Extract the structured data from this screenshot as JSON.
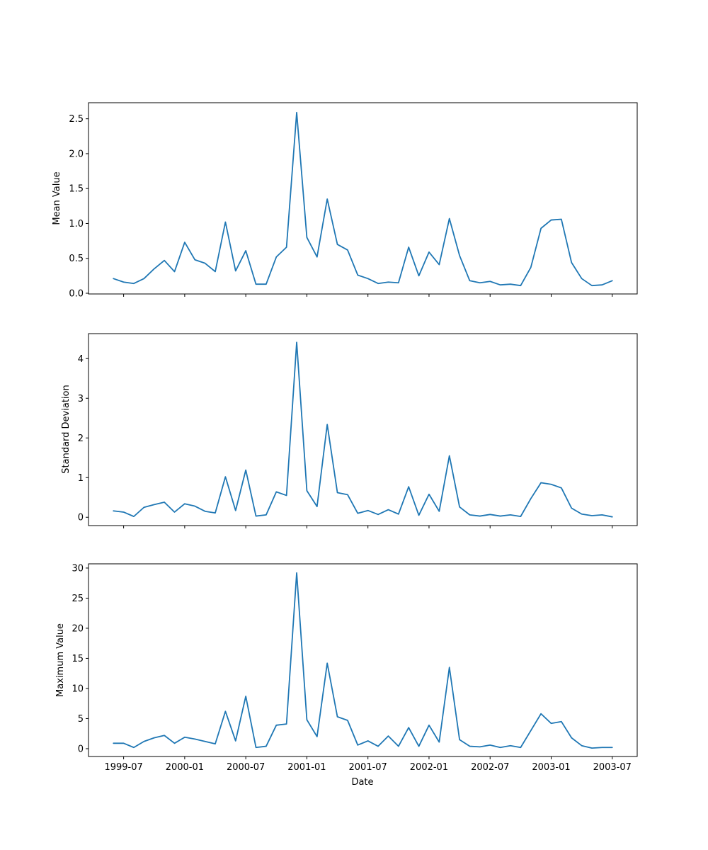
{
  "chart_data": {
    "type": "line",
    "colors": {
      "line": "#1f77b4"
    },
    "x": [
      "1999-06",
      "1999-07",
      "1999-08",
      "1999-09",
      "1999-10",
      "1999-11",
      "1999-12",
      "2000-01",
      "2000-02",
      "2000-03",
      "2000-04",
      "2000-05",
      "2000-06",
      "2000-07",
      "2000-08",
      "2000-09",
      "2000-10",
      "2000-11",
      "2000-12",
      "2001-01",
      "2001-02",
      "2001-03",
      "2001-04",
      "2001-05",
      "2001-06",
      "2001-07",
      "2001-08",
      "2001-09",
      "2001-10",
      "2001-11",
      "2001-12",
      "2002-01",
      "2002-02",
      "2002-03",
      "2002-04",
      "2002-05",
      "2002-06",
      "2002-07",
      "2002-08",
      "2002-09",
      "2002-10",
      "2002-11",
      "2002-12",
      "2003-01",
      "2003-02",
      "2003-03",
      "2003-04",
      "2003-05",
      "2003-06",
      "2003-07"
    ],
    "xticks": [
      "1999-07",
      "2000-01",
      "2000-07",
      "2001-01",
      "2001-07",
      "2002-01",
      "2002-07",
      "2003-01",
      "2003-07"
    ],
    "xlabel": "Date",
    "panels": [
      {
        "ylabel": "Mean Value",
        "ylim": [
          -0.01,
          2.73
        ],
        "yticks": [
          0.0,
          0.5,
          1.0,
          1.5,
          2.0,
          2.5
        ],
        "ytick_labels": [
          "0.0",
          "0.5",
          "1.0",
          "1.5",
          "2.0",
          "2.5"
        ],
        "values": [
          0.21,
          0.16,
          0.14,
          0.21,
          0.35,
          0.47,
          0.31,
          0.73,
          0.48,
          0.43,
          0.31,
          1.02,
          0.32,
          0.61,
          0.13,
          0.13,
          0.52,
          0.66,
          2.59,
          0.8,
          0.52,
          1.35,
          0.7,
          0.62,
          0.26,
          0.21,
          0.14,
          0.16,
          0.15,
          0.66,
          0.25,
          0.59,
          0.41,
          1.07,
          0.54,
          0.18,
          0.15,
          0.17,
          0.12,
          0.13,
          0.11,
          0.37,
          0.93,
          1.05,
          1.06,
          0.44,
          0.21,
          0.11,
          0.12,
          0.18
        ]
      },
      {
        "ylabel": "Standard Deviation",
        "ylim": [
          -0.21,
          4.63
        ],
        "yticks": [
          0,
          1,
          2,
          3,
          4
        ],
        "ytick_labels": [
          "0",
          "1",
          "2",
          "3",
          "4"
        ],
        "values": [
          0.16,
          0.13,
          0.02,
          0.25,
          0.32,
          0.38,
          0.13,
          0.34,
          0.28,
          0.15,
          0.11,
          1.02,
          0.17,
          1.19,
          0.03,
          0.06,
          0.64,
          0.55,
          4.41,
          0.67,
          0.27,
          2.34,
          0.62,
          0.57,
          0.1,
          0.17,
          0.07,
          0.19,
          0.08,
          0.77,
          0.05,
          0.58,
          0.15,
          1.55,
          0.26,
          0.06,
          0.03,
          0.07,
          0.03,
          0.06,
          0.02,
          0.47,
          0.87,
          0.83,
          0.74,
          0.23,
          0.08,
          0.04,
          0.06,
          0.01
        ]
      },
      {
        "ylabel": "Maximum Value",
        "ylim": [
          -1.3,
          30.7
        ],
        "yticks": [
          0,
          5,
          10,
          15,
          20,
          25,
          30
        ],
        "ytick_labels": [
          "0",
          "5",
          "10",
          "15",
          "20",
          "25",
          "30"
        ],
        "values": [
          0.9,
          0.9,
          0.2,
          1.2,
          1.8,
          2.2,
          0.9,
          1.9,
          1.6,
          1.2,
          0.8,
          6.2,
          1.3,
          8.7,
          0.2,
          0.4,
          3.9,
          4.1,
          29.2,
          4.8,
          2.0,
          14.2,
          5.3,
          4.7,
          0.6,
          1.3,
          0.4,
          2.1,
          0.4,
          3.5,
          0.4,
          3.9,
          1.1,
          13.5,
          1.5,
          0.4,
          0.3,
          0.6,
          0.2,
          0.5,
          0.2,
          3.0,
          5.8,
          4.2,
          4.5,
          1.8,
          0.5,
          0.1,
          0.2,
          0.2
        ]
      }
    ]
  }
}
